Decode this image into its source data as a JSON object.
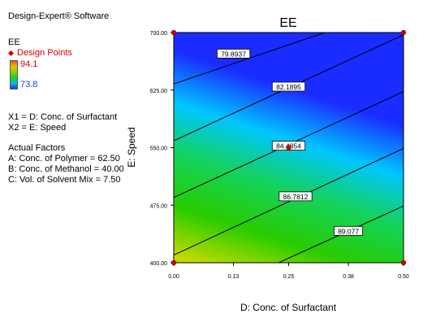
{
  "sidebar": {
    "software": "Design-Expert® Software",
    "response": "EE",
    "design_points_label": "Design Points",
    "color_max": "94.1",
    "color_min": "73.8",
    "x1": "X1 = D: Conc. of Surfactant",
    "x2": "X2 = E: Speed",
    "actual_factors_title": "Actual Factors",
    "factor_a": "A: Conc. of Polymer = 62.50",
    "factor_b": "B: Conc. of Methanol = 40.00",
    "factor_c": "C: Vol. of Solvent Mix = 7.50"
  },
  "colors": {
    "design_point": "#d40000",
    "scale_high": "#e05a00",
    "scale_low": "#1a3cff"
  },
  "chart_data": {
    "type": "contour",
    "title": "EE",
    "xlabel": "D: Conc. of Surfactant",
    "ylabel": "E: Speed",
    "xlim": [
      0.0,
      0.5
    ],
    "ylim": [
      400,
      700
    ],
    "xticks": [
      "0.00",
      "0.13",
      "0.25",
      "0.38",
      "0.50"
    ],
    "yticks": [
      "400.00",
      "475.00",
      "550.00",
      "625.00",
      "700.00"
    ],
    "z_range": [
      73.8,
      94.1
    ],
    "contours": [
      {
        "label": "79.8937",
        "label_at": [
          0.13,
          672
        ],
        "points": [
          [
            0.0,
            633
          ],
          [
            0.5,
            735
          ]
        ]
      },
      {
        "label": "82.1895",
        "label_at": [
          0.25,
          629
        ],
        "points": [
          [
            0.0,
            559
          ],
          [
            0.5,
            697
          ]
        ]
      },
      {
        "label": "84.4854",
        "label_at": [
          0.25,
          552
        ],
        "points": [
          [
            0.0,
            485
          ],
          [
            0.5,
            623
          ]
        ]
      },
      {
        "label": "86.7812",
        "label_at": [
          0.265,
          486
        ],
        "points": [
          [
            0.0,
            410
          ],
          [
            0.5,
            549
          ]
        ]
      },
      {
        "label": "89.077",
        "label_at": [
          0.38,
          441
        ],
        "points": [
          [
            0.0,
            338
          ],
          [
            0.5,
            474
          ]
        ]
      }
    ],
    "design_points": [
      [
        0.0,
        400
      ],
      [
        0.0,
        700
      ],
      [
        0.5,
        400
      ],
      [
        0.5,
        700
      ],
      [
        0.25,
        550
      ]
    ]
  }
}
